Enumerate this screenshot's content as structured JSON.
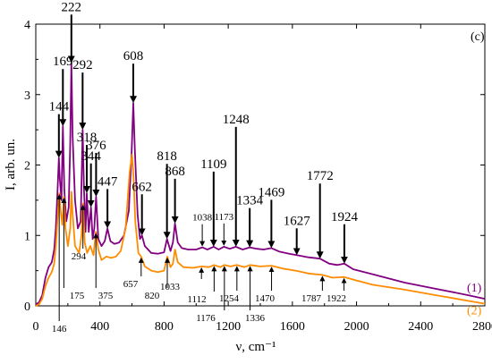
{
  "chart_data": {
    "type": "line",
    "panel_label": "(c)",
    "xlabel": "ν, cm⁻¹",
    "ylabel": "I, arb. un.",
    "xlim": [
      0,
      2800
    ],
    "ylim": [
      0,
      4
    ],
    "x_ticks": [
      0,
      400,
      800,
      1200,
      1600,
      2000,
      2400,
      2800
    ],
    "y_ticks": [
      0,
      1,
      2,
      3,
      4
    ],
    "grid": false,
    "legend": "right, at curve ends",
    "series": [
      {
        "name": "(1)",
        "color": "#800080",
        "x": [
          0,
          20,
          40,
          60,
          80,
          100,
          115,
          125,
          135,
          144,
          150,
          160,
          169,
          178,
          190,
          205,
          215,
          222,
          230,
          245,
          262,
          280,
          292,
          300,
          310,
          318,
          330,
          344,
          355,
          365,
          376,
          390,
          410,
          430,
          447,
          465,
          490,
          520,
          550,
          580,
          598,
          608,
          618,
          635,
          650,
          662,
          680,
          720,
          760,
          800,
          818,
          840,
          855,
          868,
          885,
          910,
          950,
          1000,
          1038,
          1070,
          1109,
          1140,
          1173,
          1210,
          1248,
          1290,
          1334,
          1380,
          1420,
          1469,
          1520,
          1580,
          1627,
          1700,
          1772,
          1830,
          1880,
          1924,
          1980,
          2100,
          2300,
          2500,
          2700,
          2800
        ],
        "y": [
          0.02,
          0.05,
          0.15,
          0.4,
          0.55,
          0.62,
          0.8,
          1.1,
          1.6,
          2.1,
          1.8,
          1.5,
          2.55,
          1.65,
          1.2,
          1.4,
          2.3,
          3.45,
          2.4,
          1.5,
          1.1,
          1.2,
          2.5,
          1.7,
          1.05,
          1.6,
          1.05,
          1.4,
          0.95,
          1.1,
          1.55,
          0.95,
          0.85,
          0.92,
          1.1,
          0.92,
          0.88,
          0.9,
          1.0,
          1.35,
          2.2,
          2.88,
          2.2,
          1.3,
          0.95,
          1.0,
          0.85,
          0.75,
          0.74,
          0.76,
          0.95,
          0.78,
          0.9,
          1.17,
          0.9,
          0.82,
          0.8,
          0.8,
          0.83,
          0.8,
          0.84,
          0.8,
          0.84,
          0.81,
          0.84,
          0.8,
          0.83,
          0.81,
          0.8,
          0.82,
          0.77,
          0.74,
          0.72,
          0.69,
          0.67,
          0.6,
          0.58,
          0.6,
          0.52,
          0.45,
          0.33,
          0.24,
          0.15,
          0.1
        ]
      },
      {
        "name": "(2)",
        "color": "#ff8c00",
        "x": [
          0,
          20,
          40,
          60,
          80,
          100,
          115,
          125,
          135,
          146,
          155,
          165,
          175,
          185,
          200,
          215,
          222,
          230,
          245,
          270,
          285,
          294,
          305,
          320,
          340,
          360,
          375,
          390,
          410,
          440,
          470,
          500,
          530,
          560,
          585,
          600,
          610,
          620,
          640,
          657,
          680,
          720,
          760,
          800,
          820,
          840,
          855,
          868,
          885,
          920,
          980,
          1033,
          1080,
          1112,
          1150,
          1176,
          1215,
          1254,
          1300,
          1336,
          1400,
          1470,
          1540,
          1620,
          1700,
          1787,
          1850,
          1922,
          2000,
          2100,
          2300,
          2500,
          2700,
          2800
        ],
        "y": [
          0.0,
          0.02,
          0.1,
          0.28,
          0.4,
          0.48,
          0.6,
          0.85,
          1.2,
          1.6,
          1.35,
          1.15,
          1.55,
          1.1,
          0.85,
          1.1,
          1.62,
          1.3,
          0.85,
          0.75,
          1.0,
          1.45,
          0.9,
          0.75,
          0.85,
          0.72,
          1.05,
          0.8,
          0.65,
          0.7,
          0.68,
          0.7,
          0.78,
          1.1,
          1.9,
          2.15,
          1.8,
          1.2,
          0.75,
          0.7,
          0.56,
          0.5,
          0.48,
          0.5,
          0.7,
          0.55,
          0.6,
          0.8,
          0.62,
          0.55,
          0.54,
          0.56,
          0.55,
          0.58,
          0.55,
          0.58,
          0.56,
          0.58,
          0.55,
          0.58,
          0.56,
          0.57,
          0.53,
          0.5,
          0.46,
          0.44,
          0.4,
          0.41,
          0.36,
          0.3,
          0.23,
          0.15,
          0.07,
          0.03
        ]
      }
    ],
    "annotations_series1": [
      {
        "label": "144",
        "x": 144,
        "y": 2.1
      },
      {
        "label": "169",
        "x": 169,
        "y": 2.55
      },
      {
        "label": "222",
        "x": 222,
        "y": 3.45
      },
      {
        "label": "292",
        "x": 292,
        "y": 2.5
      },
      {
        "label": "318",
        "x": 318,
        "y": 1.6
      },
      {
        "label": "344",
        "x": 344,
        "y": 1.4
      },
      {
        "label": "376",
        "x": 376,
        "y": 1.55
      },
      {
        "label": "447",
        "x": 447,
        "y": 1.1
      },
      {
        "label": "608",
        "x": 608,
        "y": 2.88
      },
      {
        "label": "662",
        "x": 662,
        "y": 1.0
      },
      {
        "label": "818",
        "x": 818,
        "y": 0.95
      },
      {
        "label": "868",
        "x": 868,
        "y": 1.17
      },
      {
        "label": "1038",
        "x": 1038,
        "y": 0.83
      },
      {
        "label": "1109",
        "x": 1109,
        "y": 0.84
      },
      {
        "label": "1173",
        "x": 1173,
        "y": 0.84
      },
      {
        "label": "1248",
        "x": 1248,
        "y": 0.84
      },
      {
        "label": "1334",
        "x": 1334,
        "y": 0.83
      },
      {
        "label": "1469",
        "x": 1469,
        "y": 0.82
      },
      {
        "label": "1627",
        "x": 1627,
        "y": 0.72
      },
      {
        "label": "1772",
        "x": 1772,
        "y": 0.67
      },
      {
        "label": "1924",
        "x": 1924,
        "y": 0.6
      }
    ],
    "annotations_series2": [
      {
        "label": "146",
        "x": 146,
        "y": 1.6
      },
      {
        "label": "175",
        "x": 175,
        "y": 1.55
      },
      {
        "label": "294",
        "x": 294,
        "y": 1.45
      },
      {
        "label": "375",
        "x": 375,
        "y": 1.05
      },
      {
        "label": "657",
        "x": 657,
        "y": 0.7
      },
      {
        "label": "820",
        "x": 820,
        "y": 0.7
      },
      {
        "label": "1033",
        "x": 1033,
        "y": 0.56
      },
      {
        "label": "1112",
        "x": 1112,
        "y": 0.58
      },
      {
        "label": "1176",
        "x": 1176,
        "y": 0.58
      },
      {
        "label": "1254",
        "x": 1254,
        "y": 0.58
      },
      {
        "label": "1336",
        "x": 1336,
        "y": 0.58
      },
      {
        "label": "1470",
        "x": 1470,
        "y": 0.57
      },
      {
        "label": "1787",
        "x": 1787,
        "y": 0.44
      },
      {
        "label": "1922",
        "x": 1922,
        "y": 0.41
      }
    ]
  }
}
